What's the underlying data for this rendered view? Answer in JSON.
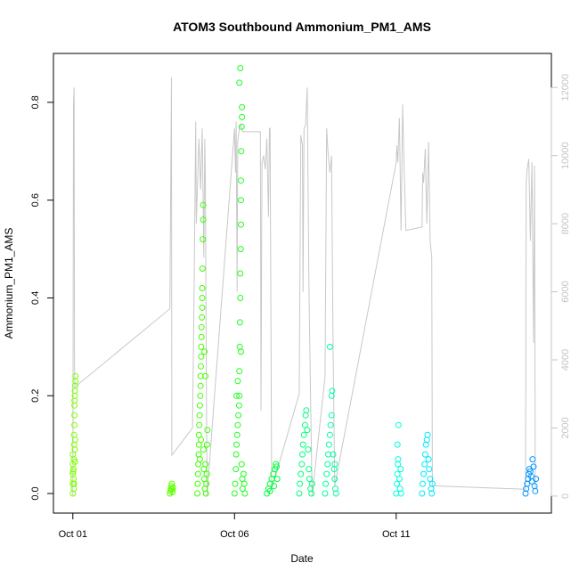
{
  "chart_data": {
    "type": "scatter",
    "title": "ATOM3 Southbound Ammonium_PM1_AMS",
    "xlabel": "Date",
    "ylabel": "Ammonium_PM1_AMS",
    "x_unit": "days (Oct 2017)",
    "xlim": [
      0.4,
      15.8
    ],
    "ylim": [
      -0.04,
      0.9
    ],
    "x_ticks": [
      {
        "value": 1,
        "label": "Oct 01"
      },
      {
        "value": 6,
        "label": "Oct 06"
      },
      {
        "value": 11,
        "label": "Oct 11"
      }
    ],
    "y_ticks": [
      0.0,
      0.2,
      0.4,
      0.6,
      0.8
    ],
    "y_tick_labels": [
      "0.0",
      "0.2",
      "0.4",
      "0.6",
      "0.8"
    ],
    "y2_lim": [
      -500,
      13000
    ],
    "y2_ticks": [
      0,
      2000,
      4000,
      6000,
      8000,
      10000,
      12000
    ],
    "y2_tick_labels": [
      "0",
      "2000",
      "4000",
      "6000",
      "8000",
      "10000",
      "12000"
    ],
    "y2_color": "#c4c4c4",
    "grid": false,
    "legend": "none",
    "series": [
      {
        "color": "#7fff00",
        "points": [
          [
            1.0,
            0.0
          ],
          [
            1.0,
            0.02
          ],
          [
            1.0,
            0.04
          ],
          [
            1.0,
            0.06
          ],
          [
            1.0,
            0.08
          ],
          [
            1.02,
            0.03
          ],
          [
            1.02,
            0.05
          ],
          [
            1.03,
            0.01
          ],
          [
            1.03,
            0.07
          ],
          [
            1.04,
            0.1
          ],
          [
            1.04,
            0.12
          ],
          [
            1.05,
            0.14
          ],
          [
            1.05,
            0.16
          ],
          [
            1.05,
            0.18
          ],
          [
            1.05,
            0.19
          ],
          [
            1.06,
            0.2
          ],
          [
            1.06,
            0.21
          ],
          [
            1.07,
            0.22
          ],
          [
            1.08,
            0.23
          ],
          [
            1.08,
            0.24
          ],
          [
            1.06,
            0.09
          ],
          [
            1.07,
            0.11
          ],
          [
            1.04,
            0.02
          ],
          [
            1.01,
            0.045
          ],
          [
            1.07,
            0.065
          ]
        ]
      },
      {
        "color": "#5fff00",
        "points": [
          [
            4.0,
            0.0
          ],
          [
            4.02,
            0.005
          ],
          [
            4.03,
            0.01
          ],
          [
            4.05,
            0.015
          ],
          [
            4.06,
            0.02
          ],
          [
            4.07,
            0.008
          ],
          [
            4.09,
            0.003
          ],
          [
            4.1,
            0.012
          ]
        ]
      },
      {
        "color": "#3fff00",
        "points": [
          [
            4.85,
            0.0
          ],
          [
            4.86,
            0.02
          ],
          [
            4.87,
            0.04
          ],
          [
            4.88,
            0.06
          ],
          [
            4.89,
            0.08
          ],
          [
            4.9,
            0.1
          ],
          [
            4.9,
            0.12
          ],
          [
            4.91,
            0.14
          ],
          [
            4.92,
            0.16
          ],
          [
            4.93,
            0.18
          ],
          [
            4.94,
            0.2
          ],
          [
            4.95,
            0.22
          ],
          [
            4.95,
            0.24
          ],
          [
            4.96,
            0.26
          ],
          [
            4.97,
            0.28
          ],
          [
            4.97,
            0.3
          ],
          [
            4.98,
            0.32
          ],
          [
            4.98,
            0.34
          ],
          [
            4.99,
            0.36
          ],
          [
            5.0,
            0.38
          ],
          [
            5.0,
            0.4
          ],
          [
            5.0,
            0.42
          ],
          [
            5.01,
            0.46
          ],
          [
            5.02,
            0.52
          ],
          [
            5.03,
            0.56
          ],
          [
            5.03,
            0.59
          ],
          [
            5.04,
            0.09
          ],
          [
            5.05,
            0.05
          ],
          [
            5.06,
            0.03
          ],
          [
            5.08,
            0.01
          ],
          [
            5.1,
            0.06
          ],
          [
            5.12,
            0.0
          ],
          [
            5.13,
            0.02
          ],
          [
            5.14,
            0.04
          ],
          [
            5.15,
            0.1
          ],
          [
            5.16,
            0.13
          ],
          [
            5.1,
            0.24
          ],
          [
            5.07,
            0.29
          ],
          [
            4.93,
            0.07
          ],
          [
            4.96,
            0.11
          ]
        ]
      },
      {
        "color": "#1fff1f",
        "points": [
          [
            6.0,
            0.0
          ],
          [
            6.02,
            0.02
          ],
          [
            6.04,
            0.05
          ],
          [
            6.05,
            0.08
          ],
          [
            6.06,
            0.1
          ],
          [
            6.08,
            0.12
          ],
          [
            6.1,
            0.14
          ],
          [
            6.12,
            0.16
          ],
          [
            6.14,
            0.18
          ],
          [
            6.15,
            0.2
          ],
          [
            6.15,
            0.25
          ],
          [
            6.16,
            0.3
          ],
          [
            6.17,
            0.35
          ],
          [
            6.18,
            0.4
          ],
          [
            6.18,
            0.45
          ],
          [
            6.19,
            0.5
          ],
          [
            6.2,
            0.55
          ],
          [
            6.2,
            0.6
          ],
          [
            6.2,
            0.64
          ],
          [
            6.21,
            0.7
          ],
          [
            6.22,
            0.75
          ],
          [
            6.23,
            0.77
          ],
          [
            6.23,
            0.79
          ],
          [
            6.15,
            0.84
          ],
          [
            6.18,
            0.87
          ],
          [
            6.2,
            0.29
          ],
          [
            6.22,
            0.06
          ],
          [
            6.24,
            0.03
          ],
          [
            6.25,
            0.01
          ],
          [
            6.28,
            0.04
          ],
          [
            6.3,
            0.02
          ],
          [
            6.32,
            0.0
          ],
          [
            6.1,
            0.23
          ],
          [
            6.06,
            0.2
          ]
        ]
      },
      {
        "color": "#00ff3f",
        "points": [
          [
            7.0,
            0.0
          ],
          [
            7.05,
            0.01
          ],
          [
            7.1,
            0.02
          ],
          [
            7.15,
            0.03
          ],
          [
            7.2,
            0.04
          ],
          [
            7.25,
            0.05
          ],
          [
            7.28,
            0.06
          ],
          [
            7.3,
            0.055
          ],
          [
            7.32,
            0.03
          ],
          [
            7.1,
            0.005
          ],
          [
            7.22,
            0.015
          ]
        ]
      },
      {
        "color": "#00ff7f",
        "points": [
          [
            8.0,
            0.0
          ],
          [
            8.02,
            0.02
          ],
          [
            8.05,
            0.04
          ],
          [
            8.08,
            0.06
          ],
          [
            8.1,
            0.08
          ],
          [
            8.12,
            0.1
          ],
          [
            8.15,
            0.12
          ],
          [
            8.18,
            0.14
          ],
          [
            8.2,
            0.16
          ],
          [
            8.22,
            0.17
          ],
          [
            8.25,
            0.13
          ],
          [
            8.28,
            0.09
          ],
          [
            8.3,
            0.05
          ],
          [
            8.32,
            0.03
          ],
          [
            8.35,
            0.01
          ],
          [
            8.38,
            0.0
          ],
          [
            8.4,
            0.02
          ]
        ]
      },
      {
        "color": "#00ffa0",
        "points": [
          [
            8.8,
            0.0
          ],
          [
            8.82,
            0.02
          ],
          [
            8.85,
            0.04
          ],
          [
            8.88,
            0.06
          ],
          [
            8.9,
            0.08
          ],
          [
            8.92,
            0.1
          ],
          [
            8.95,
            0.12
          ],
          [
            8.97,
            0.14
          ],
          [
            9.0,
            0.16
          ],
          [
            9.0,
            0.2
          ],
          [
            9.02,
            0.21
          ],
          [
            8.95,
            0.3
          ],
          [
            9.05,
            0.08
          ],
          [
            9.08,
            0.05
          ],
          [
            9.1,
            0.03
          ],
          [
            9.12,
            0.01
          ],
          [
            9.14,
            0.0
          ],
          [
            9.1,
            0.06
          ]
        ]
      },
      {
        "color": "#00ffe0",
        "points": [
          [
            11.0,
            0.0
          ],
          [
            11.02,
            0.02
          ],
          [
            11.04,
            0.04
          ],
          [
            11.05,
            0.06
          ],
          [
            11.06,
            0.07
          ],
          [
            11.04,
            0.1
          ],
          [
            11.07,
            0.14
          ],
          [
            11.1,
            0.03
          ],
          [
            11.12,
            0.01
          ],
          [
            11.14,
            0.05
          ],
          [
            11.15,
            0.0
          ]
        ]
      },
      {
        "color": "#00e8ff",
        "points": [
          [
            11.8,
            0.0
          ],
          [
            11.82,
            0.02
          ],
          [
            11.85,
            0.04
          ],
          [
            11.88,
            0.06
          ],
          [
            11.9,
            0.08
          ],
          [
            11.92,
            0.1
          ],
          [
            11.95,
            0.11
          ],
          [
            11.97,
            0.12
          ],
          [
            12.0,
            0.07
          ],
          [
            12.02,
            0.05
          ],
          [
            12.05,
            0.03
          ],
          [
            12.08,
            0.01
          ],
          [
            12.1,
            0.0
          ],
          [
            12.12,
            0.02
          ]
        ]
      },
      {
        "color": "#0096ff",
        "points": [
          [
            15.0,
            0.0
          ],
          [
            15.02,
            0.01
          ],
          [
            15.05,
            0.02
          ],
          [
            15.08,
            0.03
          ],
          [
            15.1,
            0.04
          ],
          [
            15.12,
            0.05
          ],
          [
            15.15,
            0.045
          ],
          [
            15.18,
            0.035
          ],
          [
            15.2,
            0.025
          ],
          [
            15.22,
            0.07
          ],
          [
            15.25,
            0.055
          ],
          [
            15.28,
            0.015
          ],
          [
            15.3,
            0.005
          ],
          [
            15.32,
            0.03
          ]
        ]
      }
    ],
    "altitude_series": {
      "color": "#c8c8c8",
      "points": [
        [
          1.0,
          0
        ],
        [
          1.01,
          5000
        ],
        [
          1.02,
          11500
        ],
        [
          1.04,
          12000
        ],
        [
          1.05,
          4000
        ],
        [
          1.06,
          3200
        ],
        [
          4.0,
          5500
        ],
        [
          4.05,
          12300
        ],
        [
          4.06,
          1200
        ],
        [
          4.7,
          2000
        ],
        [
          4.75,
          6000
        ],
        [
          4.8,
          11000
        ],
        [
          4.82,
          8000
        ],
        [
          4.9,
          10500
        ],
        [
          4.95,
          9000
        ],
        [
          5.0,
          10800
        ],
        [
          5.05,
          7000
        ],
        [
          5.08,
          10500
        ],
        [
          5.1,
          9200
        ],
        [
          5.12,
          5200
        ],
        [
          5.15,
          0
        ],
        [
          6.0,
          10800
        ],
        [
          6.03,
          9500
        ],
        [
          6.05,
          11000
        ],
        [
          6.08,
          6000
        ],
        [
          6.1,
          10400
        ],
        [
          6.15,
          10800
        ],
        [
          6.2,
          10900
        ],
        [
          6.25,
          10700
        ],
        [
          6.8,
          10700
        ],
        [
          6.82,
          2500
        ],
        [
          6.85,
          9800
        ],
        [
          6.9,
          10000
        ],
        [
          6.95,
          9600
        ],
        [
          7.0,
          10500
        ],
        [
          7.05,
          8200
        ],
        [
          7.08,
          10800
        ],
        [
          7.1,
          10800
        ],
        [
          7.15,
          200
        ],
        [
          8.0,
          3000
        ],
        [
          8.05,
          10600
        ],
        [
          8.1,
          10300
        ],
        [
          8.12,
          6000
        ],
        [
          8.15,
          10800
        ],
        [
          8.2,
          10900
        ],
        [
          8.25,
          12000
        ],
        [
          8.3,
          6200
        ],
        [
          8.35,
          3000
        ],
        [
          8.4,
          0
        ],
        [
          8.8,
          3500
        ],
        [
          8.85,
          10800
        ],
        [
          8.9,
          10000
        ],
        [
          8.95,
          9500
        ],
        [
          9.0,
          10000
        ],
        [
          9.05,
          4200
        ],
        [
          9.1,
          300
        ],
        [
          11.0,
          9800
        ],
        [
          11.02,
          10300
        ],
        [
          11.05,
          9800
        ],
        [
          11.1,
          11100
        ],
        [
          11.15,
          7800
        ],
        [
          11.2,
          11500
        ],
        [
          11.25,
          9500
        ],
        [
          11.3,
          7800
        ],
        [
          11.8,
          7900
        ],
        [
          11.82,
          9500
        ],
        [
          11.85,
          9200
        ],
        [
          11.9,
          10200
        ],
        [
          11.95,
          8000
        ],
        [
          12.0,
          10400
        ],
        [
          12.05,
          7500
        ],
        [
          12.1,
          7000
        ],
        [
          12.12,
          300
        ],
        [
          15.0,
          200
        ],
        [
          15.02,
          9200
        ],
        [
          15.05,
          9600
        ],
        [
          15.1,
          9900
        ],
        [
          15.15,
          7500
        ],
        [
          15.2,
          9800
        ],
        [
          15.25,
          4500
        ],
        [
          15.28,
          9700
        ],
        [
          15.3,
          200
        ]
      ]
    }
  }
}
